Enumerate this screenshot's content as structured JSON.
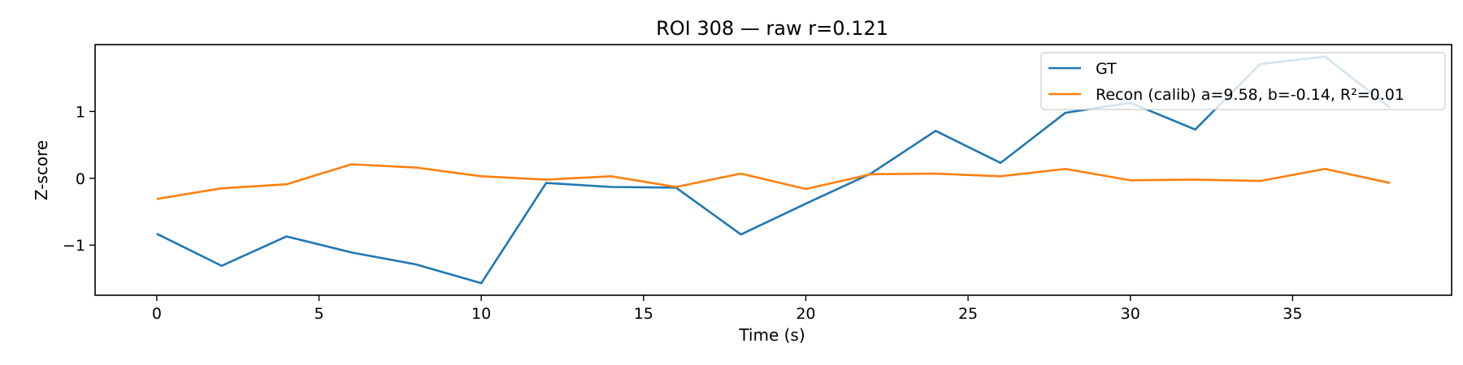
{
  "chart_data": {
    "type": "line",
    "title": "ROI 308 — raw r=0.121",
    "xlabel": "Time (s)",
    "ylabel": "Z-score",
    "xlim": [
      -1.9,
      39.9
    ],
    "ylim": [
      -1.75,
      2.0
    ],
    "xticks": [
      0,
      5,
      10,
      15,
      20,
      25,
      30,
      35
    ],
    "xtick_labels": [
      "0",
      "5",
      "10",
      "15",
      "20",
      "25",
      "30",
      "35"
    ],
    "yticks": [
      -1,
      0,
      1
    ],
    "ytick_labels": [
      "−1",
      "0",
      "1"
    ],
    "grid": false,
    "legend_position": "top-right",
    "x": [
      0,
      2,
      4,
      6,
      8,
      10,
      12,
      14,
      16,
      18,
      20,
      22,
      24,
      26,
      28,
      30,
      32,
      34,
      36,
      38
    ],
    "series": [
      {
        "name": "GT",
        "color": "#1f77b4",
        "values": [
          -0.83,
          -1.31,
          -0.87,
          -1.11,
          -1.29,
          -1.57,
          -0.07,
          -0.13,
          -0.14,
          -0.84,
          -0.38,
          0.07,
          0.71,
          0.23,
          0.98,
          1.13,
          0.73,
          1.71,
          1.82,
          1.06
        ]
      },
      {
        "name": "Recon (calib) a=9.58, b=-0.14, R²=0.01",
        "color": "#ff7f0e",
        "values": [
          -0.31,
          -0.15,
          -0.09,
          0.21,
          0.16,
          0.03,
          -0.02,
          0.03,
          -0.13,
          0.07,
          -0.16,
          0.06,
          0.07,
          0.03,
          0.14,
          -0.03,
          -0.02,
          -0.04,
          0.14,
          -0.07
        ]
      }
    ]
  }
}
